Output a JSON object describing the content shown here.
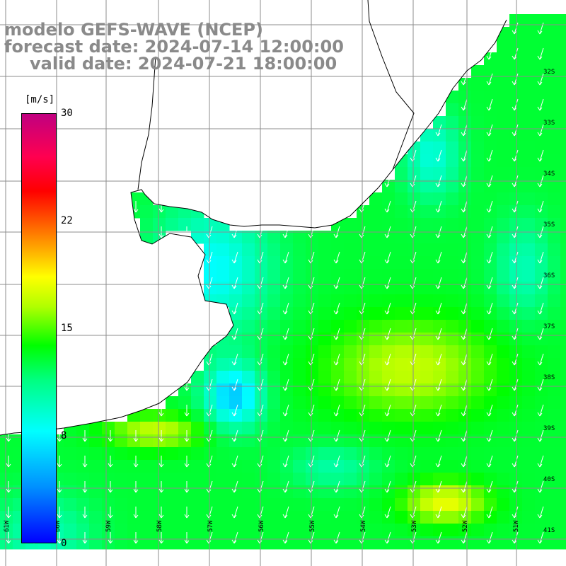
{
  "title": {
    "model": "modelo GEFS-WAVE (NCEP)",
    "forecast_date": "forecast date: 2024-07-14 12:00:00",
    "valid_date": "valid date: 2024-07-21 18:00:00"
  },
  "colorbar": {
    "unit": "[m/s]",
    "ticks": [
      {
        "label": "30",
        "value": 30
      },
      {
        "label": "22",
        "value": 22
      },
      {
        "label": "15",
        "value": 15
      },
      {
        "label": "8",
        "value": 8
      },
      {
        "label": "0",
        "value": 0
      }
    ],
    "range": [
      0,
      30
    ]
  },
  "map": {
    "latitude_labels": [
      "32S",
      "33S",
      "34S",
      "35S",
      "36S",
      "37S",
      "38S",
      "39S",
      "40S",
      "41S"
    ],
    "longitude_labels": [
      "61W",
      "60W",
      "59W",
      "58W",
      "57W",
      "56W",
      "55W",
      "54W",
      "53W",
      "52W",
      "51W"
    ],
    "field_colors": {
      "land": "#ffffff",
      "coast": "#000000",
      "arrow": "#ffffff"
    }
  }
}
